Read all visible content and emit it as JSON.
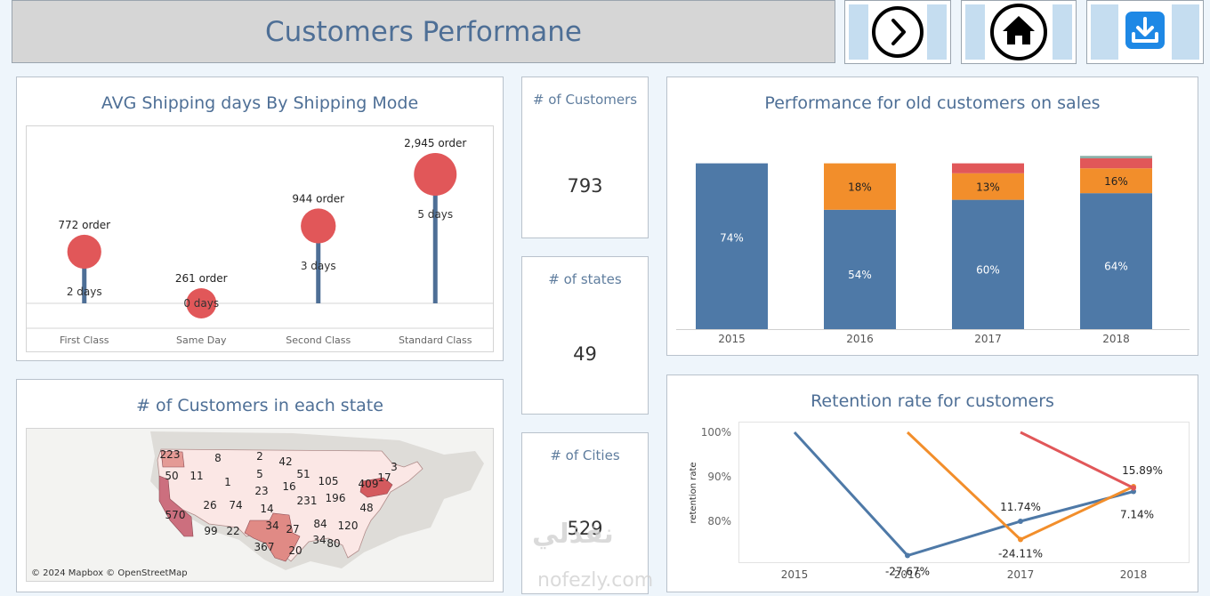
{
  "header": {
    "title": "Customers Performane"
  },
  "nav": {
    "next_icon": "chevron-right-circle-icon",
    "home_icon": "home-icon",
    "download_icon": "download-icon"
  },
  "shipping": {
    "title": "AVG Shipping days By Shipping Mode",
    "items": [
      {
        "mode": "First Class",
        "days": 2,
        "days_label": "2 days",
        "orders": 772,
        "orders_label": "772 order"
      },
      {
        "mode": "Same Day",
        "days": 0,
        "days_label": "0 days",
        "orders": 261,
        "orders_label": "261 order"
      },
      {
        "mode": "Second Class",
        "days": 3,
        "days_label": "3 days",
        "orders": 944,
        "orders_label": "944 order"
      },
      {
        "mode": "Standard Class",
        "days": 5,
        "days_label": "5 days",
        "orders": 2945,
        "orders_label": "2,945 order"
      }
    ]
  },
  "kpis": [
    {
      "label": "# of Customers",
      "value": "793"
    },
    {
      "label": "# of states",
      "value": "49"
    },
    {
      "label": "# of Cities",
      "value": "529"
    }
  ],
  "map": {
    "title": "# of Customers in each state",
    "attribution": "© 2024 Mapbox © OpenStreetMap",
    "labels": [
      {
        "text": "223"
      },
      {
        "text": "8"
      },
      {
        "text": "2"
      },
      {
        "text": "42"
      },
      {
        "text": "3"
      },
      {
        "text": "50"
      },
      {
        "text": "11"
      },
      {
        "text": "5"
      },
      {
        "text": "51"
      },
      {
        "text": "17"
      },
      {
        "text": "1"
      },
      {
        "text": "23"
      },
      {
        "text": "16"
      },
      {
        "text": "105"
      },
      {
        "text": "409"
      },
      {
        "text": "570"
      },
      {
        "text": "26"
      },
      {
        "text": "74"
      },
      {
        "text": "14"
      },
      {
        "text": "231"
      },
      {
        "text": "196"
      },
      {
        "text": "48"
      },
      {
        "text": "99"
      },
      {
        "text": "22"
      },
      {
        "text": "34"
      },
      {
        "text": "27"
      },
      {
        "text": "84"
      },
      {
        "text": "120"
      },
      {
        "text": "367"
      },
      {
        "text": "20"
      },
      {
        "text": "34"
      },
      {
        "text": "80"
      }
    ]
  },
  "chart_data": [
    {
      "type": "bar",
      "title": "Performance for old customers on sales",
      "categories": [
        "2015",
        "2016",
        "2017",
        "2018"
      ],
      "series": [
        {
          "values": [
            100,
            72,
            78,
            82
          ],
          "labels": [
            "74%",
            "54%",
            "60%",
            "64%"
          ],
          "color": "#4e79a7"
        },
        {
          "values": [
            0,
            28,
            16,
            15
          ],
          "labels": [
            "",
            "18%",
            "13%",
            "16%"
          ],
          "color": "#f28e2b"
        },
        {
          "values": [
            0,
            0,
            6,
            6
          ],
          "labels": [
            "",
            "",
            "",
            ""
          ],
          "color": "#e15759"
        },
        {
          "values": [
            0,
            0,
            0,
            1.5
          ],
          "labels": [
            "",
            "",
            "",
            ""
          ],
          "color": "#8cb0a8"
        }
      ],
      "ylim": [
        0,
        125
      ]
    },
    {
      "type": "line",
      "title": "Retention rate for customers",
      "ylabel": "retention rate",
      "x": [
        "2015",
        "2016",
        "2017",
        "2018"
      ],
      "yticks": [
        "100%",
        "90%",
        "80%"
      ],
      "ylim": [
        72,
        102
      ],
      "series": [
        {
          "color": "#4e79a7",
          "points": [
            [
              0,
              100
            ],
            [
              1,
              72.3
            ],
            [
              2,
              80
            ],
            [
              3,
              86.7
            ]
          ],
          "labels": [
            [
              1,
              "-27.67%"
            ],
            [
              2,
              "11.74%"
            ],
            [
              3,
              "7.14%"
            ]
          ]
        },
        {
          "color": "#f28e2b",
          "points": [
            [
              1,
              100
            ],
            [
              2,
              75.9
            ],
            [
              3,
              87.8
            ]
          ],
          "labels": [
            [
              2,
              "-24.11%"
            ],
            [
              3,
              "15.89%"
            ]
          ]
        },
        {
          "color": "#e15759",
          "points": [
            [
              2,
              100
            ],
            [
              3,
              87.5
            ]
          ],
          "labels": []
        }
      ]
    }
  ],
  "watermark": {
    "text": "نفذلي",
    "sub": "nofezly.com"
  }
}
